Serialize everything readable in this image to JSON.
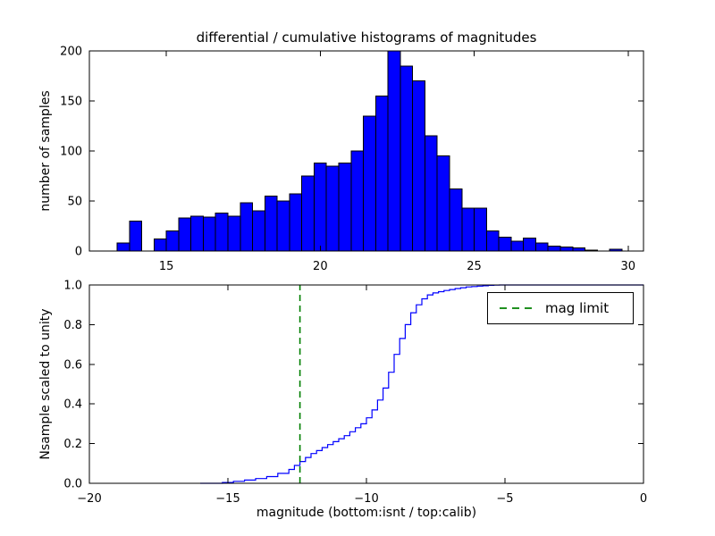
{
  "chart_data": [
    {
      "type": "bar",
      "title": "differential / cumulative histograms of magnitudes",
      "ylabel": "number of samples",
      "xlim": [
        12.5,
        30.5
      ],
      "ylim": [
        0,
        200
      ],
      "xticks": [
        15,
        20,
        25,
        30
      ],
      "xtick_labels": [
        "15",
        "20",
        "25",
        "30"
      ],
      "yticks": [
        0,
        50,
        100,
        150,
        200
      ],
      "ytick_labels": [
        "0",
        "50",
        "100",
        "150",
        "200"
      ],
      "bin_width": 0.4,
      "bin_starts": [
        13.4,
        13.8,
        14.2,
        14.6,
        15.0,
        15.4,
        15.8,
        16.2,
        16.6,
        17.0,
        17.4,
        17.8,
        18.2,
        18.6,
        19.0,
        19.4,
        19.8,
        20.2,
        20.6,
        21.0,
        21.4,
        21.8,
        22.2,
        22.6,
        23.0,
        23.4,
        23.8,
        24.2,
        24.6,
        25.0,
        25.4,
        25.8,
        26.2,
        26.6,
        27.0,
        27.4,
        27.8,
        28.2,
        28.6,
        29.4
      ],
      "counts": [
        8,
        30,
        0,
        12,
        20,
        33,
        35,
        34,
        38,
        35,
        48,
        40,
        55,
        50,
        57,
        75,
        88,
        85,
        88,
        100,
        135,
        155,
        200,
        185,
        170,
        115,
        95,
        62,
        43,
        43,
        20,
        14,
        10,
        13,
        8,
        5,
        4,
        3,
        1,
        2
      ],
      "colors": {
        "fill": "#0000ff",
        "edge": "#000000"
      }
    },
    {
      "type": "line",
      "ylabel": "Nsample scaled to unity",
      "xlabel": "magnitude (bottom:isnt / top:calib)",
      "xlim": [
        -20,
        0
      ],
      "ylim": [
        0,
        1
      ],
      "xticks": [
        -20,
        -15,
        -10,
        -5,
        0
      ],
      "xtick_labels": [
        "−20",
        "−15",
        "−10",
        "−5",
        "0"
      ],
      "yticks": [
        0,
        0.2,
        0.4,
        0.6,
        0.8,
        1
      ],
      "ytick_labels": [
        "0.0",
        "0.2",
        "0.4",
        "0.6",
        "0.8",
        "1.0"
      ],
      "line_color": "#0000ff",
      "step_points": [
        [
          -16,
          0
        ],
        [
          -15.2,
          0.004
        ],
        [
          -14.8,
          0.01
        ],
        [
          -14.4,
          0.016
        ],
        [
          -14,
          0.024
        ],
        [
          -13.6,
          0.034
        ],
        [
          -13.2,
          0.05
        ],
        [
          -12.8,
          0.07
        ],
        [
          -12.6,
          0.09
        ],
        [
          -12.4,
          0.11
        ],
        [
          -12.2,
          0.13
        ],
        [
          -12,
          0.15
        ],
        [
          -11.8,
          0.165
        ],
        [
          -11.6,
          0.18
        ],
        [
          -11.4,
          0.195
        ],
        [
          -11.2,
          0.21
        ],
        [
          -11,
          0.225
        ],
        [
          -10.8,
          0.24
        ],
        [
          -10.6,
          0.26
        ],
        [
          -10.4,
          0.28
        ],
        [
          -10.2,
          0.3
        ],
        [
          -10,
          0.33
        ],
        [
          -9.8,
          0.37
        ],
        [
          -9.6,
          0.42
        ],
        [
          -9.4,
          0.48
        ],
        [
          -9.2,
          0.56
        ],
        [
          -9,
          0.65
        ],
        [
          -8.8,
          0.73
        ],
        [
          -8.6,
          0.8
        ],
        [
          -8.4,
          0.86
        ],
        [
          -8.2,
          0.9
        ],
        [
          -8,
          0.93
        ],
        [
          -7.8,
          0.95
        ],
        [
          -7.6,
          0.96
        ],
        [
          -7.4,
          0.966
        ],
        [
          -7.2,
          0.972
        ],
        [
          -7,
          0.977
        ],
        [
          -6.8,
          0.982
        ],
        [
          -6.6,
          0.986
        ],
        [
          -6.4,
          0.99
        ],
        [
          -6.2,
          0.992
        ],
        [
          -6,
          0.994
        ],
        [
          -5.8,
          0.996
        ],
        [
          -5.6,
          0.998
        ],
        [
          -5.4,
          0.999
        ],
        [
          -5.2,
          1
        ],
        [
          0,
          1
        ]
      ],
      "vline": {
        "x": -12.4,
        "color": "#008000",
        "dash": "7,5",
        "label": "mag limit"
      },
      "legend": {
        "position": "upper right",
        "entries": [
          "mag limit"
        ]
      }
    }
  ]
}
